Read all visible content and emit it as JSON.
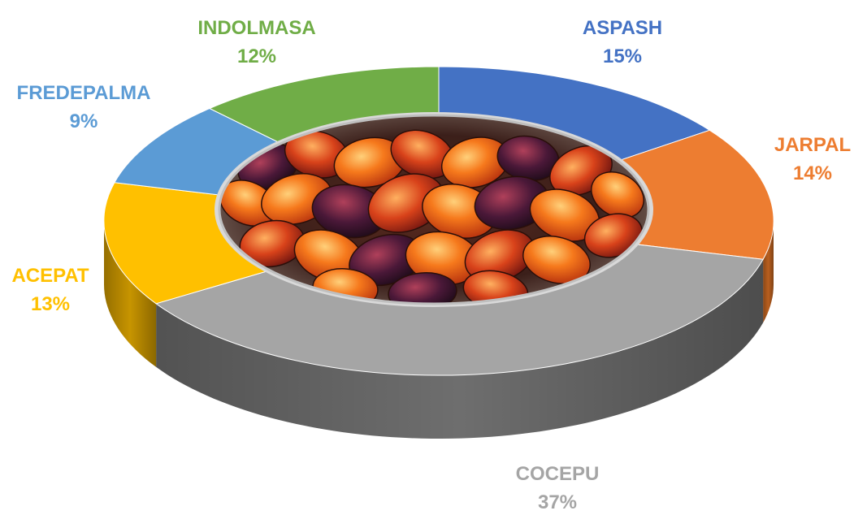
{
  "chart_data": {
    "type": "pie",
    "variant": "3d-doughnut",
    "categories": [
      "ASPASH",
      "JARPAL",
      "COCEPU",
      "ACEPAT",
      "FREDEPALMA",
      "INDOLMASA"
    ],
    "values": [
      15,
      14,
      37,
      13,
      9,
      12
    ],
    "value_labels": [
      "15%",
      "14%",
      "37%",
      "13%",
      "9%",
      "12%"
    ],
    "colors": [
      "#4472C4",
      "#ED7D31",
      "#A5A5A5",
      "#FFC000",
      "#5B9BD5",
      "#70AD47"
    ],
    "side_colors": [
      "#2F5597",
      "#B85F1F",
      "#6E6E6E",
      "#C79400",
      "#3B79B0",
      "#4E8033"
    ],
    "center_image": "palm-fruit-photo",
    "legend": "none",
    "data_labels": "outside"
  }
}
